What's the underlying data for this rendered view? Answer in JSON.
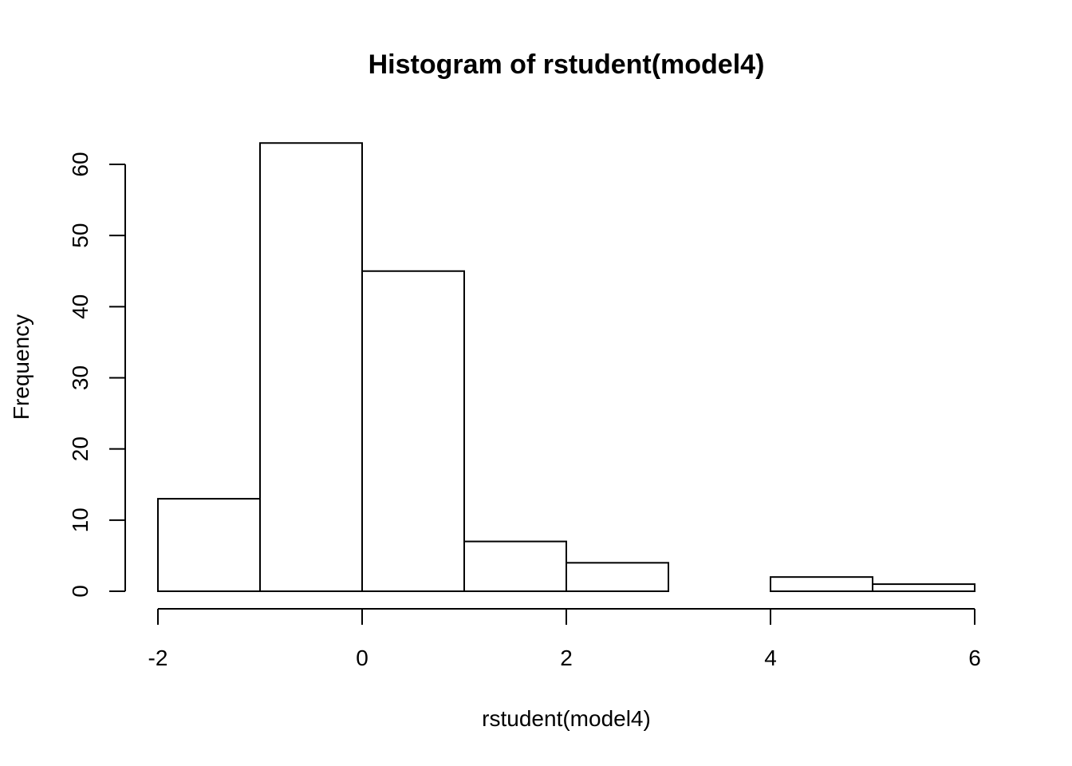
{
  "chart_data": {
    "type": "bar",
    "title": "Histogram of rstudent(model4)",
    "xlabel": "rstudent(model4)",
    "ylabel": "Frequency",
    "bins": [
      {
        "start": -2,
        "end": -1,
        "count": 13
      },
      {
        "start": -1,
        "end": 0,
        "count": 63
      },
      {
        "start": 0,
        "end": 1,
        "count": 45
      },
      {
        "start": 1,
        "end": 2,
        "count": 7
      },
      {
        "start": 2,
        "end": 3,
        "count": 4
      },
      {
        "start": 3,
        "end": 4,
        "count": 0
      },
      {
        "start": 4,
        "end": 5,
        "count": 2
      },
      {
        "start": 5,
        "end": 6,
        "count": 1
      }
    ],
    "xlim": [
      -2,
      6
    ],
    "ylim": [
      0,
      60
    ],
    "x_ticks": [
      -2,
      0,
      2,
      4,
      6
    ],
    "x_tick_labels": [
      "-2",
      "0",
      "2",
      "4",
      "6"
    ],
    "y_ticks": [
      0,
      10,
      20,
      30,
      40,
      50,
      60
    ],
    "y_tick_labels": [
      "0",
      "10",
      "20",
      "30",
      "40",
      "50",
      "60"
    ],
    "grid": false,
    "bar_fill": "#ffffff",
    "bar_stroke": "#000000"
  }
}
